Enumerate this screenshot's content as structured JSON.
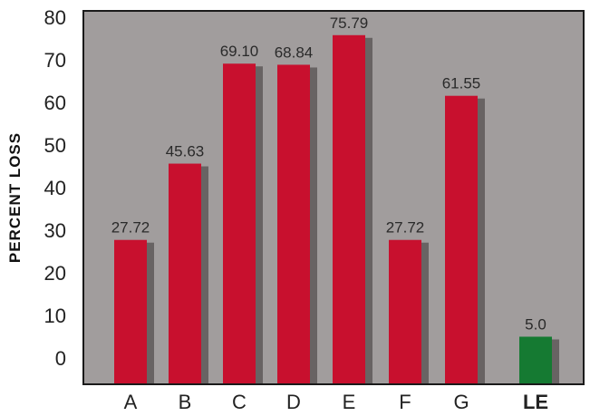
{
  "chart_data": {
    "type": "bar",
    "title": "",
    "xlabel": "",
    "ylabel": "PERCENT LOSS",
    "categories": [
      "A",
      "B",
      "C",
      "D",
      "E",
      "F",
      "G",
      "LE"
    ],
    "values": [
      27.72,
      45.63,
      69.1,
      68.84,
      75.79,
      27.72,
      61.55,
      5.0
    ],
    "value_labels": [
      "27.72",
      "45.63",
      "69.10",
      "68.84",
      "75.79",
      "27.72",
      "61.55",
      "5.0"
    ],
    "bold_categories": [
      "LE"
    ],
    "ylim": [
      0,
      80
    ],
    "yticks": [
      "0",
      "10",
      "20",
      "30",
      "40",
      "50",
      "60",
      "70",
      "80"
    ],
    "grid": false,
    "legend": "none",
    "colors": {
      "plot_background": "#a19d9d",
      "bar": "#c8102e",
      "bar_highlight": "#157a32",
      "shadow": "#555050"
    }
  }
}
